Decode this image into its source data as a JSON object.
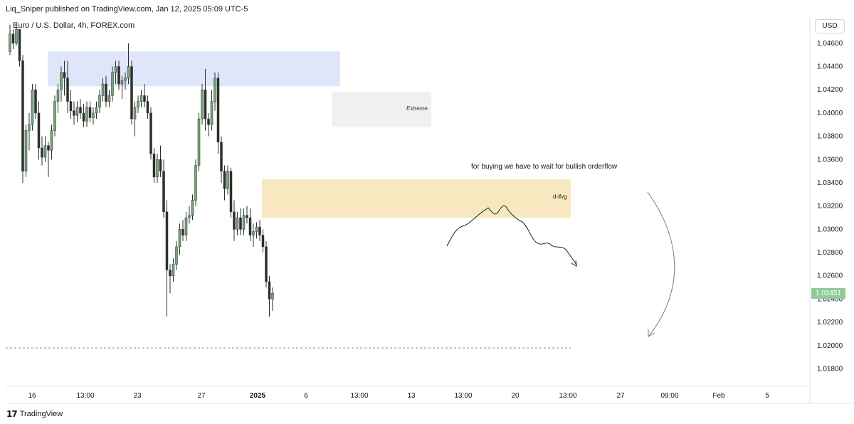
{
  "header": {
    "published_by": "Liq_Sniper published on TradingView.com, Jan 12, 2025 05:09 UTC-5",
    "symbol": "Euro / U.S. Dollar, 4h, FOREX.com",
    "currency_button": "USD",
    "footer_logo": "TradingView"
  },
  "chart_data": {
    "type": "candlestick",
    "instrument": "Euro / U.S. Dollar",
    "timeframe": "4h",
    "y_axis": {
      "range": [
        1.0165,
        1.0485
      ],
      "ticks": [
        "1.04600",
        "1.04400",
        "1.04200",
        "1.04000",
        "1.03800",
        "1.03600",
        "1.03400",
        "1.03200",
        "1.03000",
        "1.02800",
        "1.02600",
        "1.02400",
        "1.02200",
        "1.02000",
        "1.01800"
      ]
    },
    "x_axis": {
      "ticks": [
        "16",
        "13:00",
        "23",
        "27",
        "2025",
        "6",
        "13:00",
        "13",
        "13:00",
        "20",
        "13:00",
        "27",
        "09:00",
        "Feb",
        "5"
      ]
    },
    "last_price": "1.02451",
    "zones": [
      {
        "name": "supply-zone",
        "color": "#dfe6fa",
        "y_top": 1.0453,
        "y_bottom": 1.0423
      },
      {
        "name": "extreme-zone",
        "label": "Extreme",
        "color": "#f0f0f0",
        "y_top": 1.0418,
        "y_bottom": 1.0388
      },
      {
        "name": "d-ifvg-zone",
        "label": "d-ifvg",
        "color": "#f7e8c0",
        "y_top": 1.0343,
        "y_bottom": 1.031
      }
    ],
    "annotation": "for buying we have to wait for bullish orderflow",
    "dashed_level": 1.0198,
    "colors": {
      "up": "#6fa977",
      "down": "#2f2f2f",
      "wick": "#2f2f2f"
    },
    "candles": [
      [
        1.0453,
        1.0476,
        1.045,
        1.0468
      ],
      [
        1.0468,
        1.0472,
        1.0455,
        1.046
      ],
      [
        1.046,
        1.0478,
        1.0458,
        1.0472
      ],
      [
        1.0472,
        1.047,
        1.044,
        1.0445
      ],
      [
        1.0445,
        1.045,
        1.034,
        1.035
      ],
      [
        1.035,
        1.039,
        1.0345,
        1.0385
      ],
      [
        1.0385,
        1.04,
        1.0368,
        1.039
      ],
      [
        1.039,
        1.0425,
        1.0385,
        1.042
      ],
      [
        1.042,
        1.0425,
        1.0395,
        1.04
      ],
      [
        1.04,
        1.041,
        1.036,
        1.037
      ],
      [
        1.037,
        1.038,
        1.0355,
        1.0362
      ],
      [
        1.0362,
        1.038,
        1.0358,
        1.0372
      ],
      [
        1.0372,
        1.0375,
        1.0345,
        1.0368
      ],
      [
        1.0368,
        1.039,
        1.036,
        1.0385
      ],
      [
        1.0385,
        1.0415,
        1.038,
        1.041
      ],
      [
        1.041,
        1.0425,
        1.04,
        1.042
      ],
      [
        1.042,
        1.044,
        1.041,
        1.0435
      ],
      [
        1.0435,
        1.0445,
        1.0415,
        1.043
      ],
      [
        1.043,
        1.0445,
        1.04,
        1.041
      ],
      [
        1.041,
        1.042,
        1.0395,
        1.0402
      ],
      [
        1.0402,
        1.041,
        1.039,
        1.0398
      ],
      [
        1.0398,
        1.041,
        1.0392,
        1.0405
      ],
      [
        1.0405,
        1.0412,
        1.0395,
        1.04
      ],
      [
        1.04,
        1.0408,
        1.0388,
        1.0393
      ],
      [
        1.0393,
        1.041,
        1.0388,
        1.0405
      ],
      [
        1.0405,
        1.041,
        1.0392,
        1.0396
      ],
      [
        1.0396,
        1.0405,
        1.039,
        1.04
      ],
      [
        1.04,
        1.041,
        1.0395,
        1.0405
      ],
      [
        1.0405,
        1.042,
        1.04,
        1.0415
      ],
      [
        1.0415,
        1.043,
        1.041,
        1.0425
      ],
      [
        1.0425,
        1.0432,
        1.0405,
        1.041
      ],
      [
        1.041,
        1.042,
        1.0405,
        1.0415
      ],
      [
        1.0415,
        1.044,
        1.041,
        1.0435
      ],
      [
        1.0435,
        1.0445,
        1.0425,
        1.044
      ],
      [
        1.044,
        1.0445,
        1.042,
        1.0425
      ],
      [
        1.0425,
        1.0432,
        1.0412,
        1.0428
      ],
      [
        1.0428,
        1.0435,
        1.042,
        1.043
      ],
      [
        1.043,
        1.046,
        1.0425,
        1.044
      ],
      [
        1.044,
        1.0445,
        1.039,
        1.0395
      ],
      [
        1.0395,
        1.041,
        1.038,
        1.0405
      ],
      [
        1.0405,
        1.0415,
        1.04,
        1.041
      ],
      [
        1.041,
        1.042,
        1.0405,
        1.0415
      ],
      [
        1.0415,
        1.0425,
        1.0405,
        1.041
      ],
      [
        1.041,
        1.0415,
        1.0395,
        1.04
      ],
      [
        1.04,
        1.0405,
        1.036,
        1.0365
      ],
      [
        1.0365,
        1.037,
        1.034,
        1.0345
      ],
      [
        1.0345,
        1.0365,
        1.034,
        1.036
      ],
      [
        1.036,
        1.0372,
        1.0345,
        1.035
      ],
      [
        1.035,
        1.036,
        1.031,
        1.0315
      ],
      [
        1.0315,
        1.0325,
        1.0225,
        1.0265
      ],
      [
        1.0265,
        1.027,
        1.0245,
        1.026
      ],
      [
        1.026,
        1.0275,
        1.0255,
        1.027
      ],
      [
        1.027,
        1.029,
        1.0265,
        1.0285
      ],
      [
        1.0285,
        1.0305,
        1.0278,
        1.03
      ],
      [
        1.03,
        1.0308,
        1.029,
        1.0295
      ],
      [
        1.0295,
        1.0315,
        1.029,
        1.031
      ],
      [
        1.031,
        1.032,
        1.0305,
        1.0312
      ],
      [
        1.0312,
        1.033,
        1.0308,
        1.0325
      ],
      [
        1.0325,
        1.036,
        1.032,
        1.0355
      ],
      [
        1.0355,
        1.04,
        1.035,
        1.0395
      ],
      [
        1.0395,
        1.0425,
        1.039,
        1.042
      ],
      [
        1.042,
        1.0438,
        1.0385,
        1.0395
      ],
      [
        1.0395,
        1.04,
        1.038,
        1.039
      ],
      [
        1.039,
        1.042,
        1.0385,
        1.041
      ],
      [
        1.041,
        1.0435,
        1.0402,
        1.043
      ],
      [
        1.043,
        1.0435,
        1.0365,
        1.0375
      ],
      [
        1.0375,
        1.038,
        1.034,
        1.035
      ],
      [
        1.035,
        1.0355,
        1.0325,
        1.0335
      ],
      [
        1.0335,
        1.0355,
        1.033,
        1.035
      ],
      [
        1.035,
        1.0353,
        1.031,
        1.0315
      ],
      [
        1.0315,
        1.0325,
        1.029,
        1.03
      ],
      [
        1.03,
        1.0315,
        1.0295,
        1.031
      ],
      [
        1.031,
        1.0318,
        1.0295,
        1.03
      ],
      [
        1.03,
        1.0318,
        1.0295,
        1.0312
      ],
      [
        1.0312,
        1.032,
        1.0305,
        1.031
      ],
      [
        1.031,
        1.0318,
        1.029,
        1.0295
      ],
      [
        1.0295,
        1.0305,
        1.0285,
        1.0298
      ],
      [
        1.0298,
        1.0306,
        1.0292,
        1.0302
      ],
      [
        1.0302,
        1.0308,
        1.029,
        1.0295
      ],
      [
        1.0295,
        1.03,
        1.028,
        1.0285
      ],
      [
        1.0285,
        1.029,
        1.025,
        1.0255
      ],
      [
        1.0255,
        1.026,
        1.0225,
        1.024
      ],
      [
        1.024,
        1.025,
        1.023,
        1.0245
      ]
    ]
  }
}
